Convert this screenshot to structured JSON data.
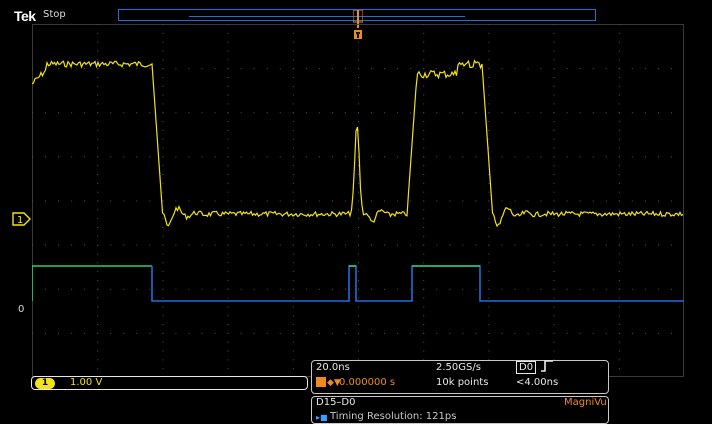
{
  "header": {
    "brand": "Tek",
    "status": "Stop"
  },
  "channels": {
    "ch1_marker_label": "1",
    "d0_marker_label": "0"
  },
  "ch1": {
    "badge": "1",
    "scale": "1.00 V"
  },
  "horizontal": {
    "time_per_div": "20.0ns",
    "sample_rate": "2.50GS/s",
    "trigger_source": "D0",
    "trigger_position_arrow": "◆▼",
    "position": "0.000000 s",
    "record_length": "10k points",
    "trigger_level": "<4.00ns"
  },
  "digital": {
    "bus": "D15–D0",
    "mode": "MagniVu",
    "timing_resolution": "Timing Resolution: 121ps"
  },
  "colors": {
    "ch1": "#f2e21a",
    "digital_high": "#2ecc71",
    "digital_low": "#1f6fd8",
    "trigger": "#f08a1c"
  }
}
